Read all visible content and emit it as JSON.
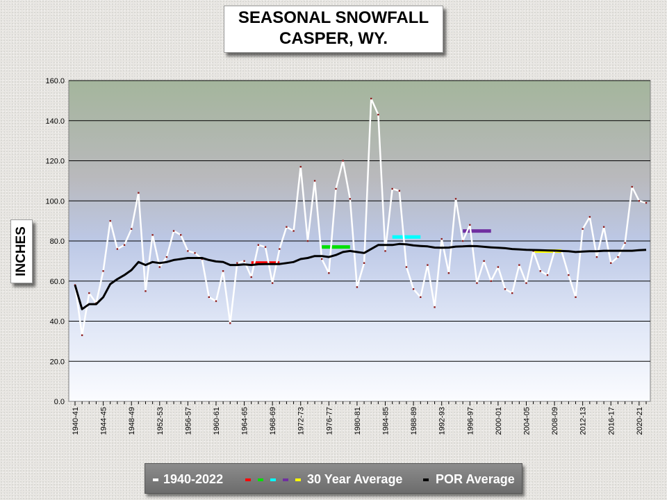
{
  "title_line1": "SEASONAL SNOWFALL",
  "title_line2": "CASPER, WY.",
  "chart_data": {
    "type": "line",
    "ylabel": "INCHES",
    "ylim": [
      0,
      160
    ],
    "y_ticks": [
      "0.0",
      "20.0",
      "40.0",
      "60.0",
      "80.0",
      "100.0",
      "120.0",
      "140.0",
      "160.0"
    ],
    "x_tick_labels": [
      "1940-41",
      "1944-45",
      "1948-49",
      "1952-53",
      "1956-57",
      "1960-61",
      "1964-65",
      "1968-69",
      "1972-73",
      "1976-77",
      "1980-81",
      "1984-85",
      "1988-89",
      "1992-93",
      "1996-97",
      "2000-01",
      "2004-05",
      "2008-09",
      "2012-13",
      "2016-17",
      "2020-21"
    ],
    "x_tick_index": [
      0,
      4,
      8,
      12,
      16,
      20,
      24,
      28,
      32,
      36,
      40,
      44,
      48,
      52,
      56,
      60,
      64,
      68,
      72,
      76,
      80
    ],
    "grid": true,
    "series": [
      {
        "name": "1940-2022",
        "color": "#ffffff",
        "values": [
          58,
          33,
          54,
          49,
          65,
          90,
          76,
          78,
          86,
          104,
          55,
          83,
          67,
          72,
          85,
          83,
          75,
          74,
          71,
          52,
          50,
          65,
          39,
          69,
          70,
          62,
          78,
          77,
          59,
          76,
          87,
          85,
          117,
          80,
          110,
          71,
          64,
          106,
          120,
          101,
          57,
          69,
          151,
          143,
          75,
          106,
          105,
          67,
          56,
          52,
          68,
          47,
          81,
          64,
          101,
          80,
          88,
          59,
          70,
          60,
          67,
          56,
          54,
          68,
          59,
          75,
          65,
          63,
          75,
          75,
          63,
          52,
          86,
          92,
          72,
          87,
          69,
          72,
          79,
          107,
          100,
          99
        ]
      },
      {
        "name": "POR Average",
        "color": "#000000",
        "values": [
          58,
          46,
          48.5,
          48.5,
          52,
          58.5,
          61,
          63,
          65.5,
          69.5,
          68,
          69.5,
          69,
          69.5,
          70.5,
          71,
          71.5,
          71.5,
          71.5,
          70.5,
          69.8,
          69.5,
          68,
          68,
          68.3,
          68,
          68.4,
          68.5,
          68.5,
          68.5,
          69,
          69.5,
          71,
          71.5,
          72.5,
          72.5,
          72,
          73,
          74.5,
          75,
          74.5,
          74,
          76,
          78,
          78,
          78,
          78.5,
          78.3,
          77.8,
          77.5,
          77.3,
          76.7,
          76.6,
          76.7,
          77.2,
          77.3,
          77.5,
          77.4,
          77.1,
          76.8,
          76.6,
          76.4,
          76,
          75.8,
          75.6,
          75.5,
          75.4,
          75.3,
          75.2,
          75,
          74.9,
          74.5,
          74.7,
          74.9,
          74.9,
          75.1,
          75.1,
          75.1,
          75.1,
          75.1,
          75.4,
          75.6
        ]
      }
    ],
    "thirty_year_averages": [
      {
        "color": "#ff0000",
        "value": 69,
        "start_index": 25,
        "end_index": 29
      },
      {
        "color": "#00e000",
        "value": 77,
        "start_index": 35,
        "end_index": 39
      },
      {
        "color": "#00ffff",
        "value": 82,
        "start_index": 45,
        "end_index": 49
      },
      {
        "color": "#7030a0",
        "value": 85,
        "start_index": 55,
        "end_index": 59
      },
      {
        "color": "#ffff00",
        "value": 75,
        "start_index": 65,
        "end_index": 69
      }
    ]
  },
  "legend": {
    "item1_label": "1940-2022",
    "item2_label": "30 Year Average",
    "item3_label": "POR Average"
  }
}
